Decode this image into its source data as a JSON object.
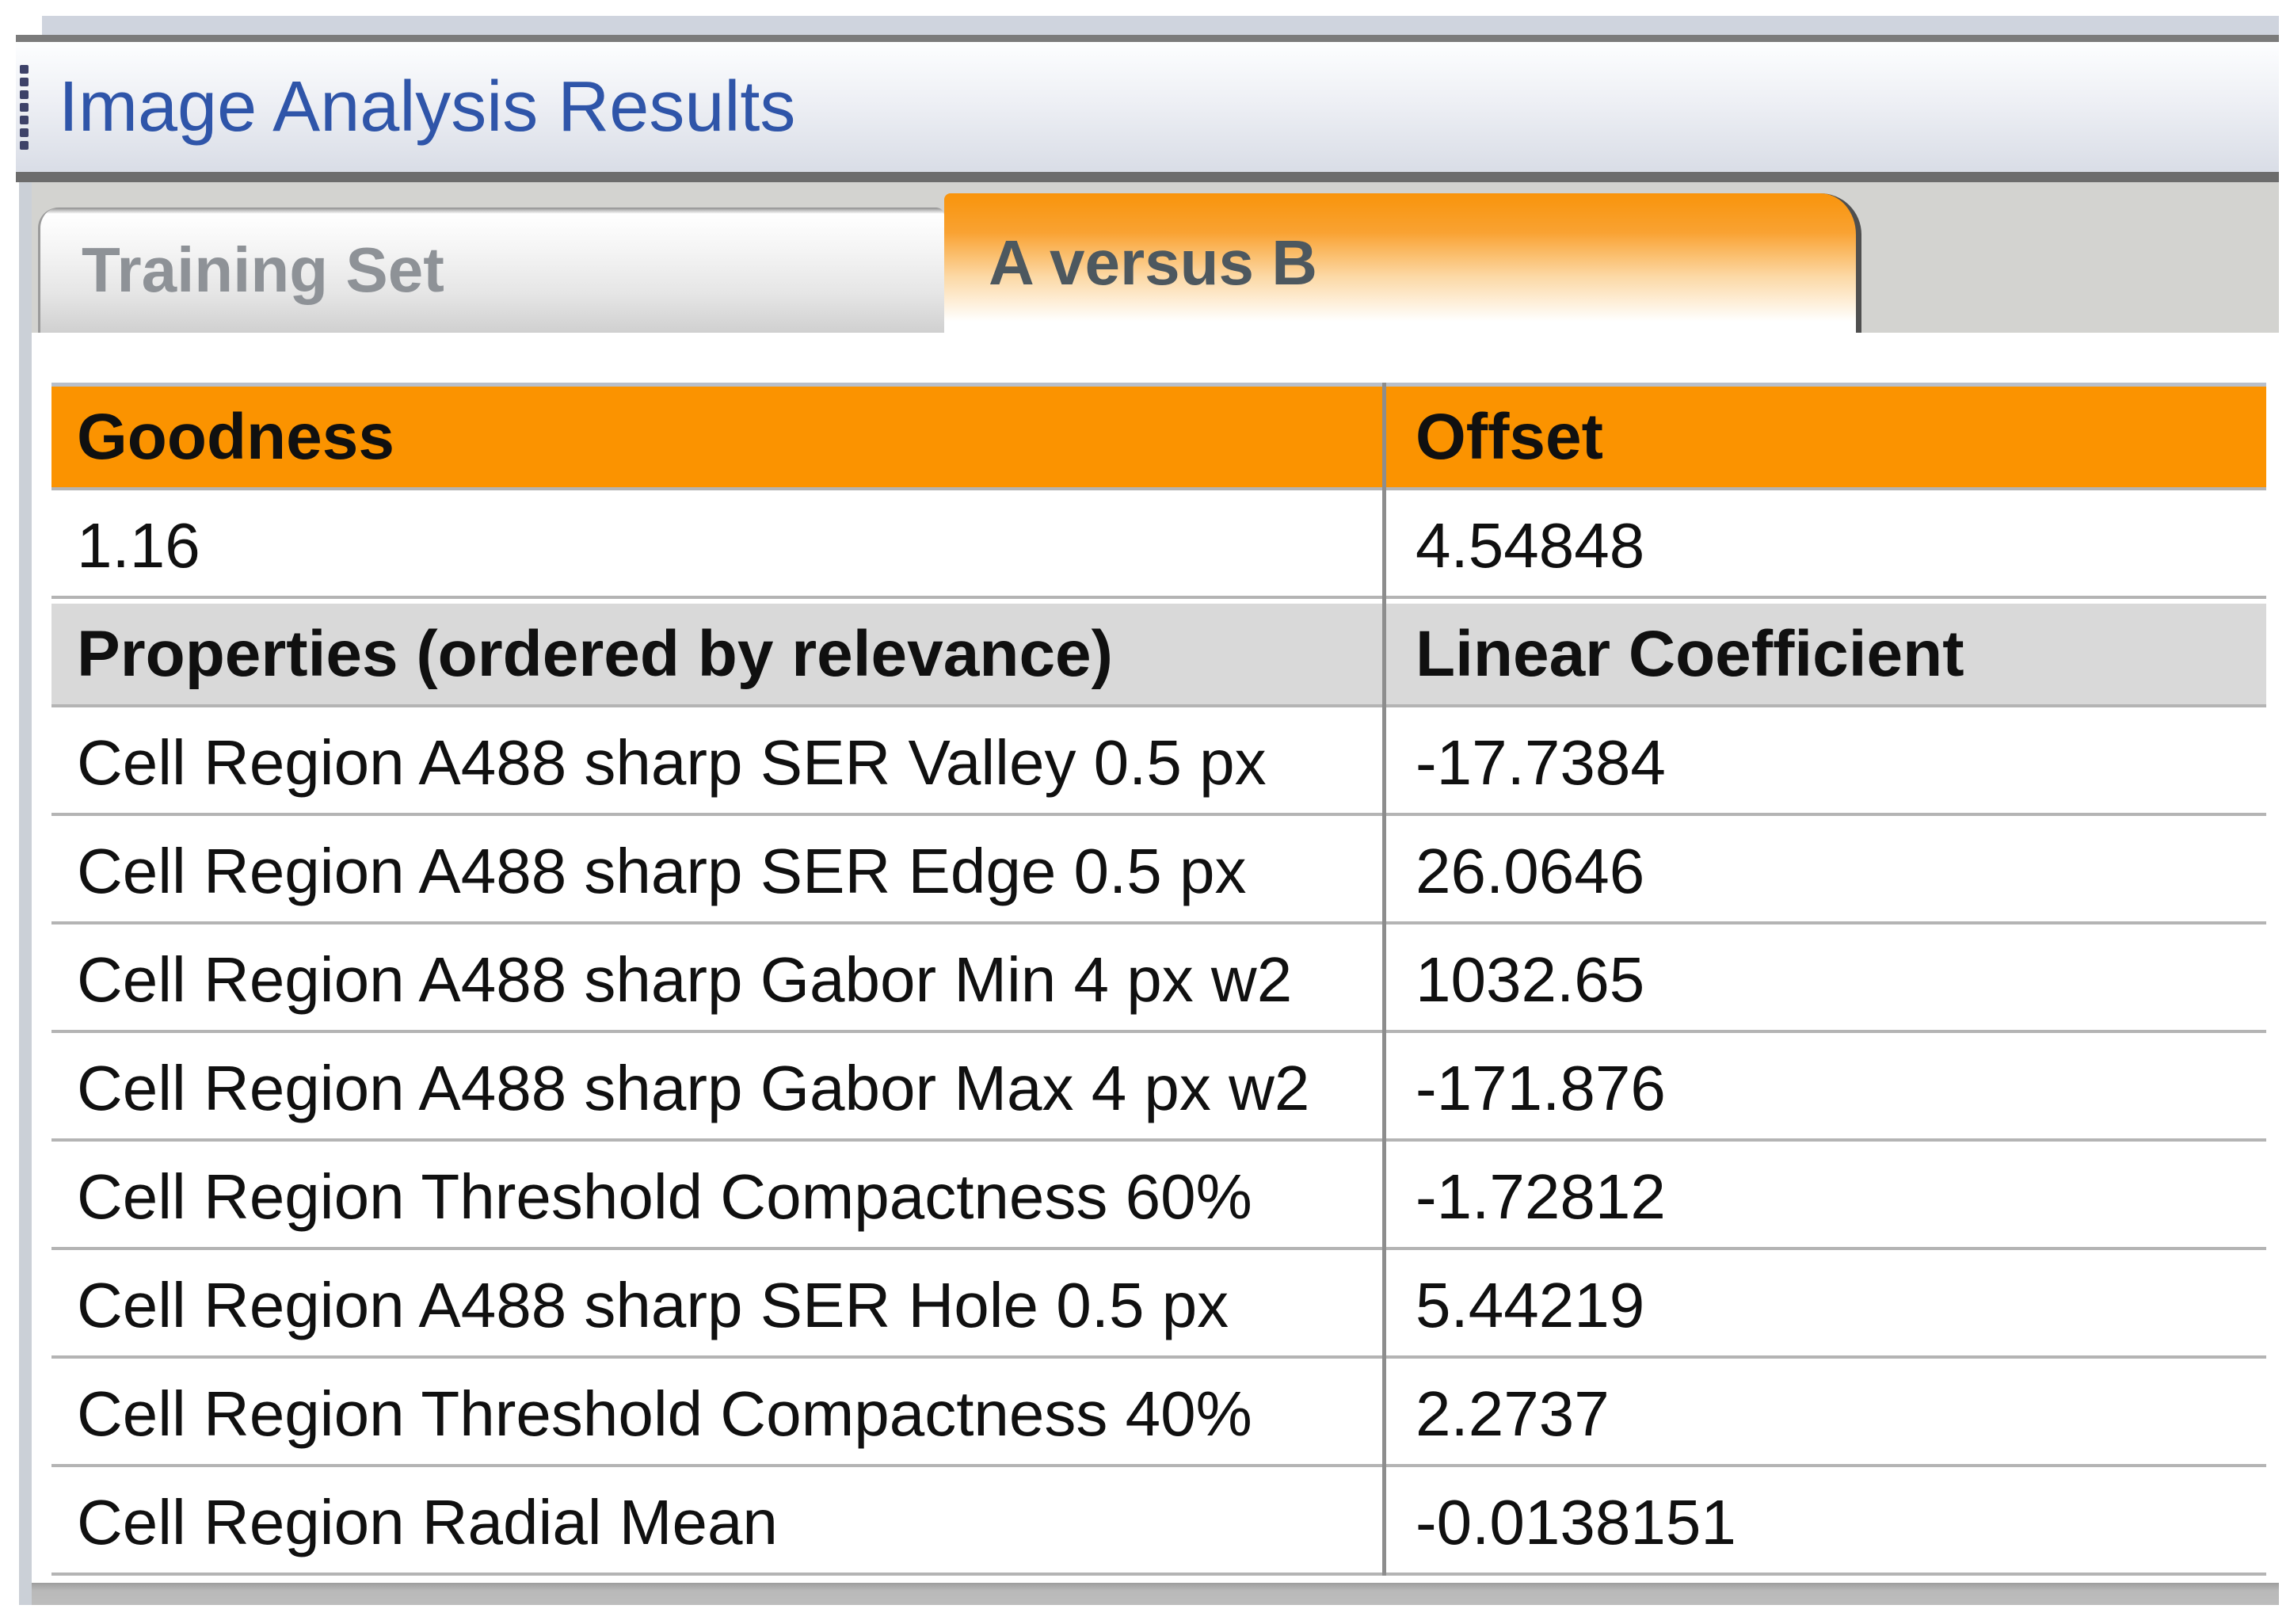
{
  "panel": {
    "title": "Image Analysis Results"
  },
  "tabs": {
    "training": "Training Set",
    "a_versus_b": "A versus B",
    "active_tab": "A versus B"
  },
  "table": {
    "goodness_header": "Goodness",
    "offset_header": "Offset",
    "goodness_value": "1.16",
    "offset_value": "4.54848",
    "properties_header": "Properties (ordered by relevance)",
    "coefficient_header": "Linear Coefficient",
    "rows": [
      {
        "property": "Cell Region A488 sharp SER Valley 0.5 px",
        "coefficient": "-17.7384"
      },
      {
        "property": "Cell Region A488 sharp SER Edge 0.5 px",
        "coefficient": "26.0646"
      },
      {
        "property": "Cell Region A488 sharp Gabor Min 4 px w2",
        "coefficient": "1032.65"
      },
      {
        "property": "Cell Region A488 sharp Gabor Max 4 px w2",
        "coefficient": "-171.876"
      },
      {
        "property": "Cell Region Threshold Compactness 60%",
        "coefficient": "-1.72812"
      },
      {
        "property": "Cell Region A488 sharp SER Hole 0.5 px",
        "coefficient": "5.44219"
      },
      {
        "property": "Cell Region Threshold Compactness 40%",
        "coefficient": "2.2737"
      },
      {
        "property": "Cell Region Radial Mean",
        "coefficient": "-0.0138151"
      }
    ]
  },
  "colors": {
    "header_orange": "#FB9300",
    "tab_active_orange_top": "#F9940B",
    "header_gray": "#D9D9D9",
    "title_blue": "#2F55A9",
    "inactive_tab_text": "#8E9297",
    "active_tab_text": "#4D585F"
  }
}
